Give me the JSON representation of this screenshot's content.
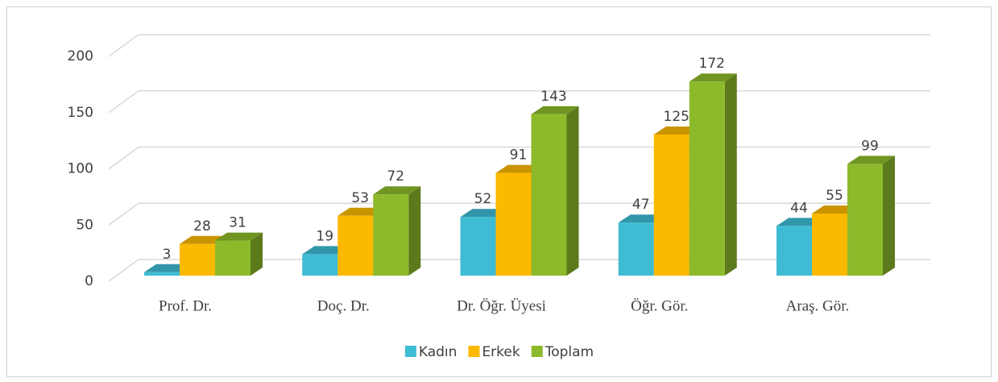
{
  "chart_data": {
    "type": "bar3d",
    "categories": [
      "Prof. Dr.",
      "Doç. Dr.",
      "Dr. Öğr. Üyesi",
      "Öğr. Gör.",
      "Araş. Gör."
    ],
    "series": [
      {
        "name": "Kadın",
        "color": "#3fbcd4",
        "values": [
          3,
          19,
          52,
          47,
          44
        ]
      },
      {
        "name": "Erkek",
        "color": "#fbb900",
        "values": [
          28,
          53,
          91,
          125,
          55
        ]
      },
      {
        "name": "Toplam",
        "color": "#8dba2b",
        "values": [
          31,
          72,
          143,
          172,
          99
        ]
      }
    ],
    "ylim": [
      0,
      200
    ],
    "yticks": [
      0,
      50,
      100,
      150,
      200
    ],
    "grid": true,
    "legend": "bottom"
  }
}
